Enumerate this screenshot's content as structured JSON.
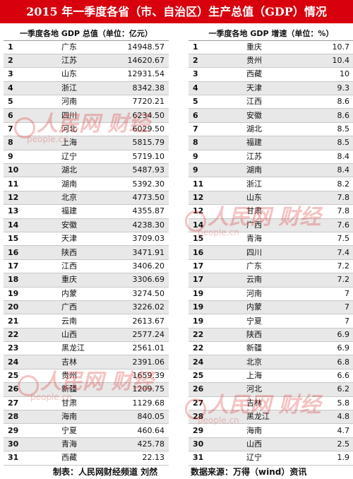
{
  "title": "2015 年一季度各省（市、自治区）生产总值（GDP）情况",
  "gdp_table": {
    "header": "一季度各地 GDP 总值（单位：亿元）",
    "rows": [
      {
        "rank": "1",
        "province": "广东",
        "value": "14948.57"
      },
      {
        "rank": "2",
        "province": "江苏",
        "value": "14620.67"
      },
      {
        "rank": "3",
        "province": "山东",
        "value": "12931.54"
      },
      {
        "rank": "4",
        "province": "浙江",
        "value": "8342.38"
      },
      {
        "rank": "5",
        "province": "河南",
        "value": "7720.21"
      },
      {
        "rank": "6",
        "province": "四川",
        "value": "6234.50"
      },
      {
        "rank": "7",
        "province": "河北",
        "value": "6029.50"
      },
      {
        "rank": "8",
        "province": "上海",
        "value": "5815.79"
      },
      {
        "rank": "9",
        "province": "辽宁",
        "value": "5719.10"
      },
      {
        "rank": "10",
        "province": "湖北",
        "value": "5487.93"
      },
      {
        "rank": "11",
        "province": "湖南",
        "value": "5392.30"
      },
      {
        "rank": "12",
        "province": "北京",
        "value": "4773.50"
      },
      {
        "rank": "13",
        "province": "福建",
        "value": "4355.87"
      },
      {
        "rank": "14",
        "province": "安徽",
        "value": "4238.30"
      },
      {
        "rank": "15",
        "province": "天津",
        "value": "3709.03"
      },
      {
        "rank": "16",
        "province": "陕西",
        "value": "3471.91"
      },
      {
        "rank": "17",
        "province": "江西",
        "value": "3406.20"
      },
      {
        "rank": "18",
        "province": "重庆",
        "value": "3306.69"
      },
      {
        "rank": "19",
        "province": "内蒙",
        "value": "3274.50"
      },
      {
        "rank": "20",
        "province": "广西",
        "value": "3226.02"
      },
      {
        "rank": "21",
        "province": "云南",
        "value": "2613.67"
      },
      {
        "rank": "22",
        "province": "山西",
        "value": "2577.24"
      },
      {
        "rank": "23",
        "province": "黑龙江",
        "value": "2561.01"
      },
      {
        "rank": "24",
        "province": "吉林",
        "value": "2391.06"
      },
      {
        "rank": "25",
        "province": "贵州",
        "value": "1659.39"
      },
      {
        "rank": "26",
        "province": "新疆",
        "value": "1209.75"
      },
      {
        "rank": "27",
        "province": "甘肃",
        "value": "1129.68"
      },
      {
        "rank": "28",
        "province": "海南",
        "value": "840.05"
      },
      {
        "rank": "29",
        "province": "宁夏",
        "value": "460.64"
      },
      {
        "rank": "30",
        "province": "青海",
        "value": "425.78"
      },
      {
        "rank": "31",
        "province": "西藏",
        "value": "22.13"
      }
    ]
  },
  "growth_table": {
    "header": "一季度各地 GDP 增速（单位：%）",
    "rows": [
      {
        "rank": "1",
        "province": "重庆",
        "value": "10.7"
      },
      {
        "rank": "2",
        "province": "贵州",
        "value": "10.4"
      },
      {
        "rank": "3",
        "province": "西藏",
        "value": "10"
      },
      {
        "rank": "4",
        "province": "天津",
        "value": "9.3"
      },
      {
        "rank": "5",
        "province": "江西",
        "value": "8.6"
      },
      {
        "rank": "6",
        "province": "安徽",
        "value": "8.6"
      },
      {
        "rank": "7",
        "province": "湖北",
        "value": "8.5"
      },
      {
        "rank": "8",
        "province": "福建",
        "value": "8.5"
      },
      {
        "rank": "9",
        "province": "江苏",
        "value": "8.4"
      },
      {
        "rank": "9",
        "province": "湖南",
        "value": "8.4"
      },
      {
        "rank": "11",
        "province": "浙江",
        "value": "8.2"
      },
      {
        "rank": "12",
        "province": "山东",
        "value": "7.8"
      },
      {
        "rank": "12",
        "province": "甘肃",
        "value": "7.8"
      },
      {
        "rank": "14",
        "province": "广西",
        "value": "7.6"
      },
      {
        "rank": "15",
        "province": "青海",
        "value": "7.5"
      },
      {
        "rank": "16",
        "province": "四川",
        "value": "7.4"
      },
      {
        "rank": "17",
        "province": "广东",
        "value": "7.2"
      },
      {
        "rank": "17",
        "province": "云南",
        "value": "7.2"
      },
      {
        "rank": "19",
        "province": "河南",
        "value": "7"
      },
      {
        "rank": "19",
        "province": "内蒙",
        "value": "7"
      },
      {
        "rank": "19",
        "province": "宁夏",
        "value": "7"
      },
      {
        "rank": "22",
        "province": "陕西",
        "value": "6.9"
      },
      {
        "rank": "22",
        "province": "新疆",
        "value": "6.9"
      },
      {
        "rank": "24",
        "province": "北京",
        "value": "6.8"
      },
      {
        "rank": "25",
        "province": "上海",
        "value": "6.6"
      },
      {
        "rank": "26",
        "province": "河北",
        "value": "6.2"
      },
      {
        "rank": "27",
        "province": "吉林",
        "value": "5.8"
      },
      {
        "rank": "28",
        "province": "黑龙江",
        "value": "4.8"
      },
      {
        "rank": "29",
        "province": "海南",
        "value": "4.7"
      },
      {
        "rank": "30",
        "province": "山西",
        "value": "2.5"
      },
      {
        "rank": "31",
        "province": "辽宁",
        "value": "1.9"
      }
    ]
  },
  "footer": {
    "maker": "制表：人民网财经频道 刘然",
    "source": "数据来源：万得（wind）资讯"
  },
  "watermark": {
    "text": "人民网 财经",
    "url": "people.cn"
  },
  "colors": {
    "title_background": "#d8000c",
    "title_text": "#ffffff",
    "row_alternate": "#e8e8e8"
  }
}
